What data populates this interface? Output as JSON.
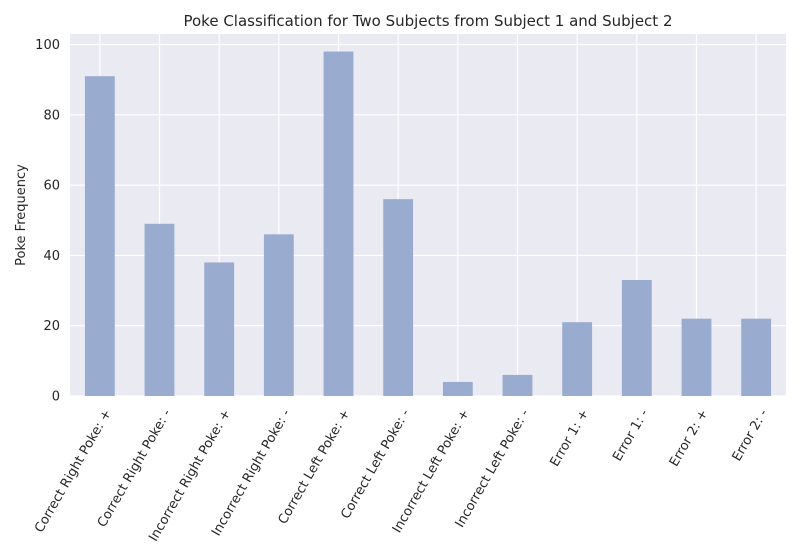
{
  "chart_data": {
    "type": "bar",
    "title": "Poke Classification for Two Subjects from Subject 1 and Subject 2",
    "xlabel": "",
    "ylabel": "Poke Frequency",
    "categories": [
      "Correct Right Poke: +",
      "Correct Right Poke: -",
      "Incorrect Right Poke: +",
      "Incorrect Right Poke: -",
      "Correct Left Poke: +",
      "Correct Left Poke: -",
      "Incorrect Left Poke: +",
      "Incorrect Left Poke: -",
      "Error 1: +",
      "Error 1: -",
      "Error 2: +",
      "Error 2: -"
    ],
    "values": [
      91,
      49,
      38,
      46,
      98,
      56,
      4,
      6,
      21,
      33,
      22,
      22
    ],
    "ylim": [
      0,
      103
    ],
    "yticks": [
      0,
      20,
      40,
      60,
      80,
      100
    ],
    "grid": true,
    "legend": false,
    "colors": {
      "bar": "#9aabd0",
      "plot_background": "#eaeaf2",
      "grid": "#ffffff"
    }
  }
}
